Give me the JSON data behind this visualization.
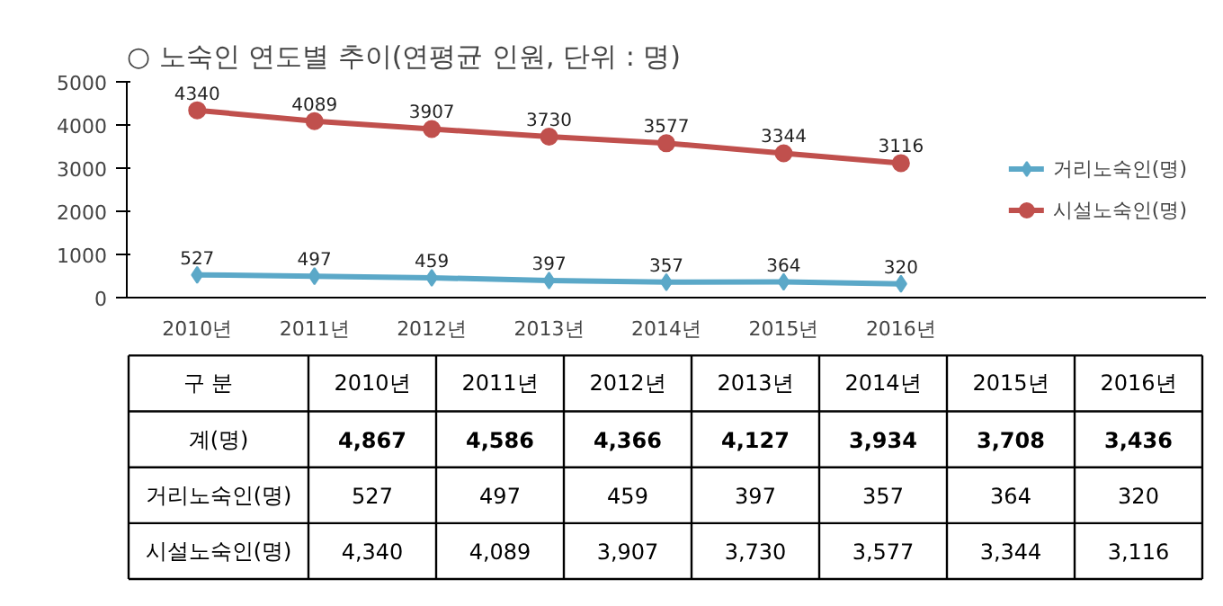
{
  "chart_data": {
    "type": "line",
    "title": "○ 노숙인 연도별 추이(연평균 인원, 단위 : 명)",
    "categories": [
      "2010년",
      "2011년",
      "2012년",
      "2013년",
      "2014년",
      "2015년",
      "2016년"
    ],
    "series": [
      {
        "name": "거리노숙인(명)",
        "color": "#5ba8c8",
        "marker": "diamond",
        "values": [
          527,
          497,
          459,
          397,
          357,
          364,
          320
        ]
      },
      {
        "name": "시설노숙인(명)",
        "color": "#c0504d",
        "marker": "circle",
        "values": [
          4340,
          4089,
          3907,
          3730,
          3577,
          3344,
          3116
        ]
      }
    ],
    "ylim": [
      0,
      5000
    ],
    "yticks": [
      0,
      1000,
      2000,
      3000,
      4000,
      5000
    ],
    "grid": false,
    "legend": "right",
    "data_labels": true,
    "totals": [
      "4,867",
      "4,586",
      "4,366",
      "4,127",
      "3,934",
      "3,708",
      "3,436"
    ],
    "annotations": [
      "구    분",
      "계(명)",
      "527",
      "497",
      "459",
      "397",
      "357",
      "364",
      "320",
      "4,340",
      "4,089",
      "3,907",
      "3,730",
      "3,577",
      "3,344",
      "3,116"
    ]
  }
}
